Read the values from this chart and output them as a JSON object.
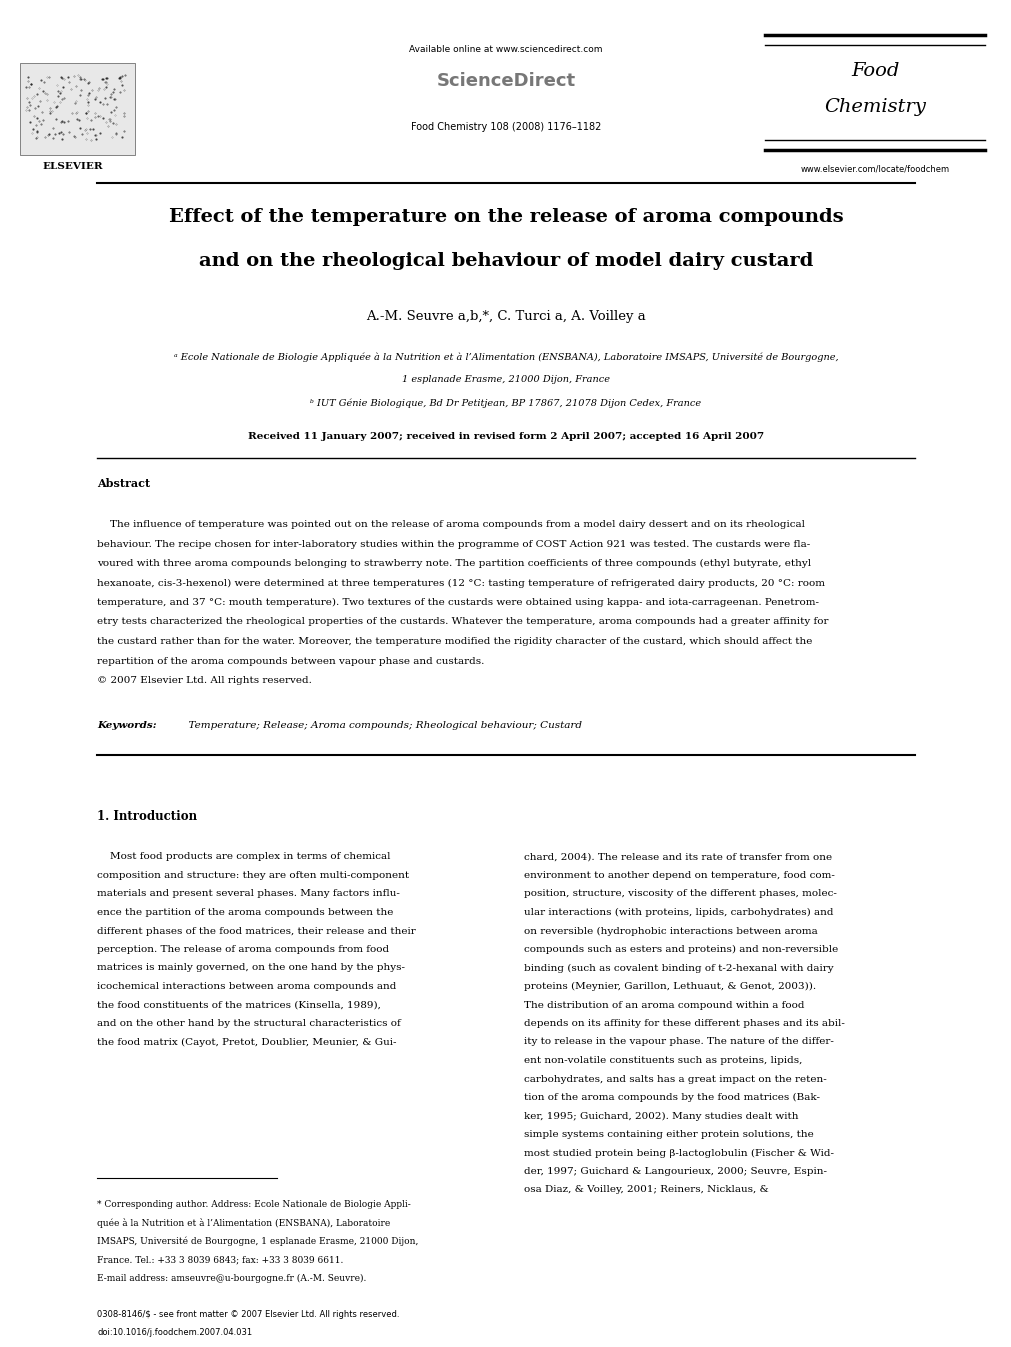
{
  "bg_color": "#ffffff",
  "page_width": 9.92,
  "page_height": 13.23,
  "dpi": 100,
  "header": {
    "available_online": "Available online at www.sciencedirect.com",
    "sciencedirect": "ScienceDirect",
    "journal_info": "Food Chemistry 108 (2008) 1176–1182",
    "journal_name_line1": "Food",
    "journal_name_line2": "Chemistry",
    "website": "www.elsevier.com/locate/foodchem",
    "elsevier_label": "ELSEVIER"
  },
  "title_line1": "Effect of the temperature on the release of aroma compounds",
  "title_line2": "and on the rheological behaviour of model dairy custard",
  "authors": "A.-M. Seuvre a,b,*, C. Turci a, A. Voilley a",
  "affil_a": "ᵃ Ecole Nationale de Biologie Appliquée à la Nutrition et à l’Alimentation (ENSBANA), Laboratoire IMSAPS, Université de Bourgogne,",
  "affil_a2": "1 esplanade Erasme, 21000 Dijon, France",
  "affil_b": "ᵇ IUT Génie Biologique, Bd Dr Petitjean, BP 17867, 21078 Dijon Cedex, France",
  "received": "Received 11 January 2007; received in revised form 2 April 2007; accepted 16 April 2007",
  "abstract_label": "Abstract",
  "abstract_lines": [
    "    The influence of temperature was pointed out on the release of aroma compounds from a model dairy dessert and on its rheological",
    "behaviour. The recipe chosen for inter-laboratory studies within the programme of COST Action 921 was tested. The custards were fla-",
    "voured with three aroma compounds belonging to strawberry note. The partition coefficients of three compounds (ethyl butyrate, ethyl",
    "hexanoate, cis-3-hexenol) were determined at three temperatures (12 °C: tasting temperature of refrigerated dairy products, 20 °C: room",
    "temperature, and 37 °C: mouth temperature). Two textures of the custards were obtained using kappa- and iota-carrageenan. Penetrom-",
    "etry tests characterized the rheological properties of the custards. Whatever the temperature, aroma compounds had a greater affinity for",
    "the custard rather than for the water. Moreover, the temperature modified the rigidity character of the custard, which should affect the",
    "repartition of the aroma compounds between vapour phase and custards.",
    "© 2007 Elsevier Ltd. All rights reserved."
  ],
  "keywords_label": "Keywords:",
  "keywords_text": "  Temperature; Release; Aroma compounds; Rheological behaviour; Custard",
  "intro_title": "1. Introduction",
  "intro_col1": [
    "    Most food products are complex in terms of chemical",
    "composition and structure: they are often multi-component",
    "materials and present several phases. Many factors influ-",
    "ence the partition of the aroma compounds between the",
    "different phases of the food matrices, their release and their",
    "perception. The release of aroma compounds from food",
    "matrices is mainly governed, on the one hand by the phys-",
    "icochemical interactions between aroma compounds and",
    "the food constituents of the matrices (Kinsella, 1989),",
    "and on the other hand by the structural characteristics of",
    "the food matrix (Cayot, Pretot, Doublier, Meunier, & Gui-"
  ],
  "intro_col2": [
    "chard, 2004). The release and its rate of transfer from one",
    "environment to another depend on temperature, food com-",
    "position, structure, viscosity of the different phases, molec-",
    "ular interactions (with proteins, lipids, carbohydrates) and",
    "on reversible (hydrophobic interactions between aroma",
    "compounds such as esters and proteins) and non-reversible",
    "binding (such as covalent binding of t-2-hexanal with dairy",
    "proteins (Meynier, Garillon, Lethuaut, & Genot, 2003)).",
    "The distribution of an aroma compound within a food",
    "depends on its affinity for these different phases and its abil-",
    "ity to release in the vapour phase. The nature of the differ-",
    "ent non-volatile constituents such as proteins, lipids,",
    "carbohydrates, and salts has a great impact on the reten-",
    "tion of the aroma compounds by the food matrices (Bak-",
    "ker, 1995; Guichard, 2002). Many studies dealt with",
    "simple systems containing either protein solutions, the",
    "most studied protein being β-lactoglobulin (Fischer & Wid-",
    "der, 1997; Guichard & Langourieux, 2000; Seuvre, Espin-",
    "osa Diaz, & Voilley, 2001; Reiners, Nicklaus, &"
  ],
  "footnote_lines": [
    "* Corresponding author. Address: Ecole Nationale de Biologie Appli-",
    "quée à la Nutrition et à l’Alimentation (ENSBANA), Laboratoire",
    "IMSAPS, Université de Bourgogne, 1 esplanade Erasme, 21000 Dijon,",
    "France. Tel.: +33 3 8039 6843; fax: +33 3 8039 6611.",
    "E-mail address: amseuvre@u-bourgogne.fr (A.-M. Seuvre)."
  ],
  "bottom_line1": "0308-8146/$ - see front matter © 2007 Elsevier Ltd. All rights reserved.",
  "bottom_line2": "doi:10.1016/j.foodchem.2007.04.031",
  "link_color": "#000080"
}
